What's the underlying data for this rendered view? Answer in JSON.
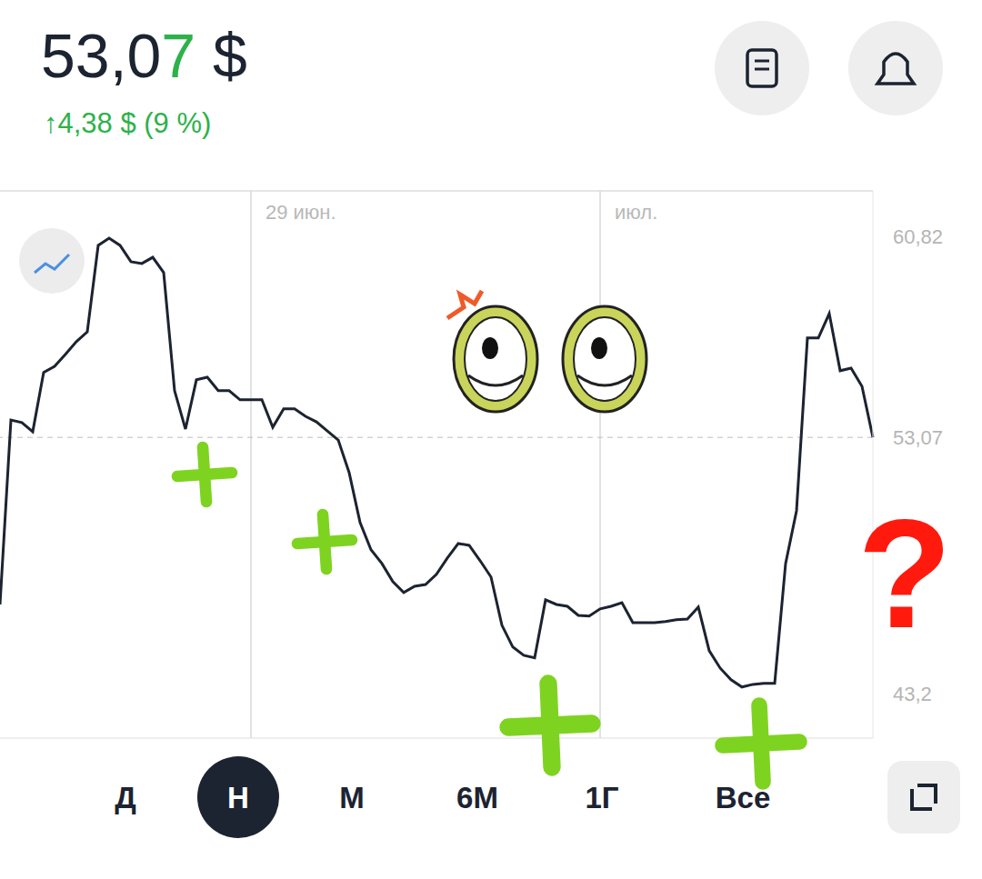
{
  "header": {
    "price": "53,07 $",
    "change": "↑4,38 $ (9 %)"
  },
  "periods": [
    "Д",
    "Н",
    "М",
    "6М",
    "1Г",
    "Все"
  ],
  "selected_period": "Н",
  "chart_data": {
    "type": "line",
    "categories": [
      null,
      null,
      null,
      null,
      null,
      null,
      null,
      null,
      null,
      null,
      null,
      null,
      null,
      null,
      null,
      null,
      null,
      null,
      null,
      null,
      null,
      null,
      null,
      "29 июн.",
      null,
      null,
      null,
      null,
      null,
      null,
      null,
      null,
      null,
      null,
      null,
      null,
      null,
      null,
      null,
      null,
      null,
      null,
      null,
      null,
      null,
      null,
      null,
      null,
      null,
      null,
      null,
      null,
      null,
      null,
      null,
      "июл.",
      null,
      null,
      null,
      null,
      null,
      null,
      null,
      null,
      null,
      null,
      null,
      null,
      null,
      null,
      null,
      null,
      null,
      null,
      null,
      null,
      null,
      null,
      null,
      null,
      null
    ],
    "values": [
      46.63,
      53.74,
      53.64,
      53.29,
      55.57,
      55.81,
      56.27,
      56.76,
      57.14,
      60.47,
      60.75,
      60.47,
      59.84,
      59.77,
      60.01,
      59.42,
      54.87,
      53.39,
      55.29,
      55.39,
      54.87,
      54.87,
      54.52,
      54.52,
      54.52,
      53.46,
      54.17,
      54.17,
      53.88,
      53.67,
      53.32,
      52.97,
      51.71,
      49.79,
      48.74,
      48.21,
      47.51,
      47.09,
      47.33,
      47.4,
      47.79,
      48.42,
      48.98,
      48.91,
      48.32,
      47.69,
      45.83,
      44.99,
      44.67,
      44.57,
      46.81,
      46.63,
      46.56,
      46.21,
      46.18,
      46.46,
      46.56,
      46.7,
      45.93,
      45.93,
      45.93,
      45.97,
      46.04,
      46.07,
      46.53,
      44.85,
      44.18,
      43.73,
      43.45,
      43.55,
      43.59,
      43.59,
      48.21,
      50.24,
      56.9,
      56.9,
      57.84,
      55.64,
      55.74,
      55.04,
      53.07
    ],
    "color": "#1c2331",
    "ylim": [
      41.48,
      62.57
    ],
    "yticks": [
      {
        "value": 43.2,
        "label": "43,2"
      },
      {
        "value": 53.07,
        "label": "53,07"
      },
      {
        "value": 60.82,
        "label": "60,82"
      }
    ],
    "grid": true,
    "current_value": 53.07,
    "annotation": "?"
  }
}
